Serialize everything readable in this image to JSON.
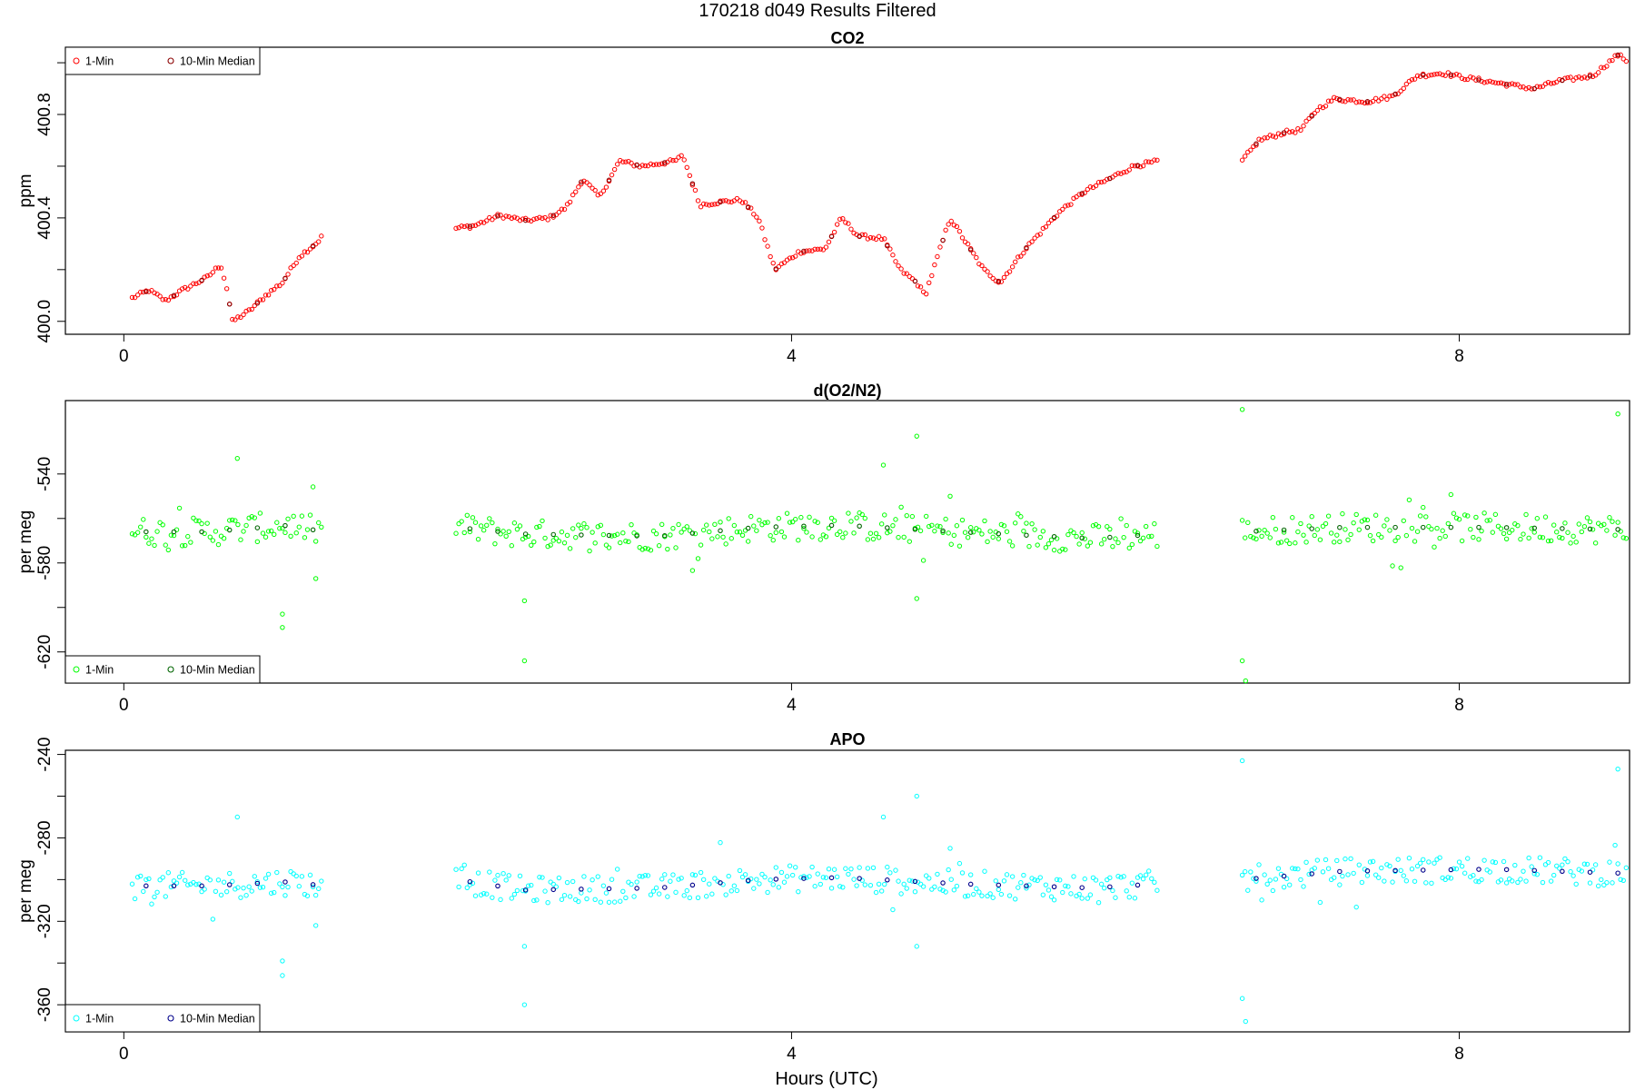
{
  "title": "170218   d049   Results Filtered",
  "xlabel": "Hours (UTC)",
  "legend": {
    "one_min": "1-Min",
    "median": "10-Min Median"
  },
  "chart_data": [
    {
      "type": "scatter",
      "title": "CO2",
      "ylabel": "ppm",
      "xlim": [
        -0.35,
        9.02
      ],
      "ylim": [
        399.95,
        401.06
      ],
      "xticks": [
        0,
        4,
        8
      ],
      "xtick_labels": [
        "0",
        "4",
        "8"
      ],
      "yticks": [
        400.0,
        400.2,
        400.4,
        400.6,
        400.8,
        401.0
      ],
      "ytick_labels": [
        "400.0",
        "",
        "400.4",
        "",
        "400.8",
        ""
      ],
      "legend_position": "top-left",
      "colors": {
        "one_min": "#ff0000",
        "median": "#8b0000"
      },
      "segments": [
        {
          "x0": 0.05,
          "x1": 1.19,
          "anchors": [
            [
              0.05,
              400.09
            ],
            [
              0.15,
              400.12
            ],
            [
              0.25,
              400.08
            ],
            [
              0.35,
              400.12
            ],
            [
              0.5,
              400.17
            ],
            [
              0.58,
              400.22
            ],
            [
              0.62,
              400.12
            ],
            [
              0.65,
              400.0
            ],
            [
              0.75,
              400.04
            ],
            [
              0.85,
              400.1
            ],
            [
              0.95,
              400.15
            ],
            [
              1.05,
              400.25
            ],
            [
              1.15,
              400.3
            ],
            [
              1.19,
              400.33
            ]
          ]
        },
        {
          "x0": 1.99,
          "x1": 6.2,
          "anchors": [
            [
              1.99,
              400.36
            ],
            [
              2.1,
              400.37
            ],
            [
              2.25,
              400.41
            ],
            [
              2.4,
              400.39
            ],
            [
              2.55,
              400.4
            ],
            [
              2.65,
              400.44
            ],
            [
              2.75,
              400.55
            ],
            [
              2.85,
              400.48
            ],
            [
              2.97,
              400.62
            ],
            [
              3.1,
              400.6
            ],
            [
              3.3,
              400.62
            ],
            [
              3.35,
              400.64
            ],
            [
              3.45,
              400.45
            ],
            [
              3.55,
              400.46
            ],
            [
              3.7,
              400.47
            ],
            [
              3.8,
              400.4
            ],
            [
              3.9,
              400.2
            ],
            [
              4.05,
              400.27
            ],
            [
              4.2,
              400.28
            ],
            [
              4.3,
              400.4
            ],
            [
              4.4,
              400.33
            ],
            [
              4.55,
              400.32
            ],
            [
              4.65,
              400.2
            ],
            [
              4.75,
              400.15
            ],
            [
              4.8,
              400.1
            ],
            [
              4.95,
              400.4
            ],
            [
              5.05,
              400.3
            ],
            [
              5.15,
              400.2
            ],
            [
              5.25,
              400.15
            ],
            [
              5.4,
              400.28
            ],
            [
              5.6,
              400.42
            ],
            [
              5.75,
              400.5
            ],
            [
              5.9,
              400.55
            ],
            [
              6.05,
              400.6
            ],
            [
              6.2,
              400.62
            ]
          ]
        },
        {
          "x0": 6.7,
          "x1": 9.0,
          "anchors": [
            [
              6.7,
              400.62
            ],
            [
              6.8,
              400.7
            ],
            [
              6.95,
              400.73
            ],
            [
              7.05,
              400.74
            ],
            [
              7.15,
              400.82
            ],
            [
              7.25,
              400.86
            ],
            [
              7.45,
              400.85
            ],
            [
              7.6,
              400.87
            ],
            [
              7.75,
              400.95
            ],
            [
              7.9,
              400.96
            ],
            [
              8.05,
              400.94
            ],
            [
              8.25,
              400.92
            ],
            [
              8.45,
              400.9
            ],
            [
              8.6,
              400.93
            ],
            [
              8.8,
              400.95
            ],
            [
              8.95,
              401.03
            ],
            [
              9.0,
              401.01
            ]
          ]
        }
      ]
    },
    {
      "type": "scatter",
      "title": "d(O2/N2)",
      "ylabel": "per meg",
      "xlim": [
        -0.35,
        9.02
      ],
      "ylim": [
        -634,
        -507
      ],
      "xticks": [
        0,
        4,
        8
      ],
      "xtick_labels": [
        "0",
        "4",
        "8"
      ],
      "yticks": [
        -540,
        -560,
        -580,
        -600,
        -620
      ],
      "ytick_labels": [
        "-540",
        "",
        "-580",
        "",
        "-620"
      ],
      "legend_position": "bottom-left",
      "colors": {
        "one_min": "#00ff00",
        "median": "#006400"
      },
      "segments": [
        {
          "x0": 0.05,
          "x1": 1.19,
          "anchors": [
            [
              0.05,
              -566
            ],
            [
              0.5,
              -566
            ],
            [
              1.0,
              -563
            ],
            [
              1.19,
              -566
            ]
          ]
        },
        {
          "x0": 1.99,
          "x1": 6.2,
          "anchors": [
            [
              1.99,
              -564
            ],
            [
              2.4,
              -567
            ],
            [
              3.2,
              -568
            ],
            [
              3.8,
              -564
            ],
            [
              4.3,
              -563
            ],
            [
              5.0,
              -566
            ],
            [
              5.8,
              -569
            ],
            [
              6.2,
              -567
            ]
          ]
        },
        {
          "x0": 6.7,
          "x1": 9.0,
          "anchors": [
            [
              6.7,
              -566
            ],
            [
              7.3,
              -564
            ],
            [
              8.2,
              -564
            ],
            [
              9.0,
              -565
            ]
          ]
        }
      ],
      "outliers": [
        [
          0.68,
          -533
        ],
        [
          0.95,
          -603
        ],
        [
          0.95,
          -609
        ],
        [
          1.15,
          -587
        ],
        [
          2.4,
          -624
        ],
        [
          2.4,
          -597
        ],
        [
          4.55,
          -536
        ],
        [
          4.75,
          -523
        ],
        [
          4.75,
          -596
        ],
        [
          4.95,
          -550
        ],
        [
          6.7,
          -511
        ],
        [
          6.7,
          -624
        ],
        [
          6.72,
          -633
        ],
        [
          8.95,
          -513
        ]
      ]
    },
    {
      "type": "scatter",
      "title": "APO",
      "ylabel": "per meg",
      "xlim": [
        -0.35,
        9.02
      ],
      "ylim": [
        -373,
        -238
      ],
      "xticks": [
        0,
        4,
        8
      ],
      "xtick_labels": [
        "0",
        "4",
        "8"
      ],
      "yticks": [
        -240,
        -260,
        -280,
        -300,
        -320,
        -340,
        -360
      ],
      "ytick_labels": [
        "-240",
        "",
        "-280",
        "",
        "-320",
        "",
        "-360"
      ],
      "legend_position": "bottom-left",
      "colors": {
        "one_min": "#00ffff",
        "median": "#00008b"
      },
      "segments": [
        {
          "x0": 0.05,
          "x1": 1.19,
          "anchors": [
            [
              0.05,
              -303
            ],
            [
              0.5,
              -303
            ],
            [
              1.0,
              -301
            ],
            [
              1.19,
              -303
            ]
          ]
        },
        {
          "x0": 1.99,
          "x1": 6.2,
          "anchors": [
            [
              1.99,
              -300
            ],
            [
              2.4,
              -305
            ],
            [
              3.2,
              -304
            ],
            [
              3.8,
              -300
            ],
            [
              4.3,
              -299
            ],
            [
              5.0,
              -302
            ],
            [
              5.8,
              -304
            ],
            [
              6.2,
              -302
            ]
          ]
        },
        {
          "x0": 6.7,
          "x1": 9.0,
          "anchors": [
            [
              6.7,
              -300
            ],
            [
              7.3,
              -296
            ],
            [
              8.2,
              -295
            ],
            [
              9.0,
              -297
            ]
          ]
        }
      ],
      "outliers": [
        [
          0.68,
          -270
        ],
        [
          0.95,
          -339
        ],
        [
          0.95,
          -346
        ],
        [
          1.15,
          -322
        ],
        [
          2.4,
          -360
        ],
        [
          2.4,
          -332
        ],
        [
          4.55,
          -270
        ],
        [
          4.75,
          -260
        ],
        [
          4.75,
          -332
        ],
        [
          4.95,
          -285
        ],
        [
          6.7,
          -243
        ],
        [
          6.7,
          -357
        ],
        [
          6.72,
          -368
        ],
        [
          8.95,
          -247
        ]
      ]
    }
  ]
}
